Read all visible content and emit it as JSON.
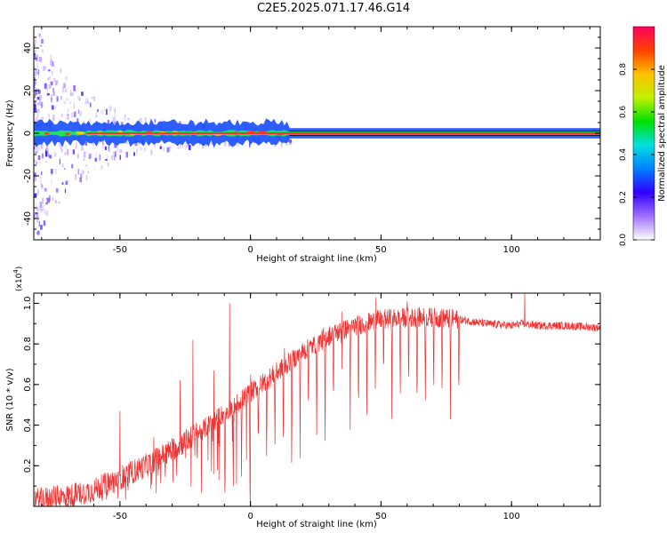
{
  "title": "C2E5.2025.071.17.46.G14",
  "chart_data": [
    {
      "type": "heatmap",
      "xlabel": "Height of straight line (km)",
      "ylabel": "Frequency (Hz)",
      "xlim": [
        -83,
        134
      ],
      "ylim": [
        -50,
        50
      ],
      "xticks": [
        -50,
        0,
        50,
        100
      ],
      "yticks": [
        -40,
        -20,
        0,
        20,
        40
      ],
      "colorbar": {
        "label": "Normalized spectral amplitude",
        "ticks": [
          0.0,
          0.2,
          0.4,
          0.6,
          0.8
        ],
        "range": [
          0,
          1
        ],
        "colormap": [
          "#ffffff",
          "#a070ff",
          "#3000ff",
          "#0080ff",
          "#00e0e0",
          "#00e000",
          "#c0f000",
          "#ffc000",
          "#ff4000",
          "#ff0060"
        ]
      },
      "ridge": {
        "frequency_hz": 0,
        "band_width_hz": 4,
        "noisy_region_end_km": 15,
        "core_color": "#ff3030",
        "band_color": "#1050ff"
      }
    },
    {
      "type": "line",
      "xlabel": "Height of straight line (km)",
      "ylabel": "SNR (10 * v/v)",
      "y_multiplier": "(x10",
      "y_multiplier_exp": "4",
      "xlim": [
        -83,
        134
      ],
      "ylim": [
        0,
        1.05
      ],
      "xticks": [
        -50,
        0,
        50,
        100
      ],
      "yticks": [
        0.2,
        0.4,
        0.6,
        0.8,
        1.0
      ],
      "line_color": "#ee3333",
      "envelope": {
        "x": [
          -83,
          -70,
          -60,
          -50,
          -40,
          -30,
          -20,
          -10,
          0,
          10,
          20,
          30,
          40,
          50,
          60,
          70,
          80,
          90,
          100,
          104,
          110,
          120,
          134
        ],
        "y": [
          0.03,
          0.05,
          0.08,
          0.14,
          0.2,
          0.28,
          0.36,
          0.46,
          0.56,
          0.66,
          0.76,
          0.84,
          0.89,
          0.92,
          0.93,
          0.93,
          0.92,
          0.9,
          0.89,
          0.9,
          0.89,
          0.89,
          0.88
        ]
      },
      "spikes": [
        {
          "x": -50,
          "y": 0.47
        },
        {
          "x": -37,
          "y": 0.34
        },
        {
          "x": -27,
          "y": 0.62
        },
        {
          "x": -22,
          "y": 0.82
        },
        {
          "x": -14,
          "y": 0.67
        },
        {
          "x": -8,
          "y": 1.0
        },
        {
          "x": 0,
          "y": 0.65
        },
        {
          "x": 13,
          "y": 0.78
        },
        {
          "x": 28,
          "y": 0.88
        },
        {
          "x": 35,
          "y": 0.96
        },
        {
          "x": 48,
          "y": 1.03
        },
        {
          "x": 60,
          "y": 1.01
        },
        {
          "x": 105,
          "y": 1.05
        }
      ],
      "dips_region_km": [
        -10,
        80
      ]
    }
  ]
}
